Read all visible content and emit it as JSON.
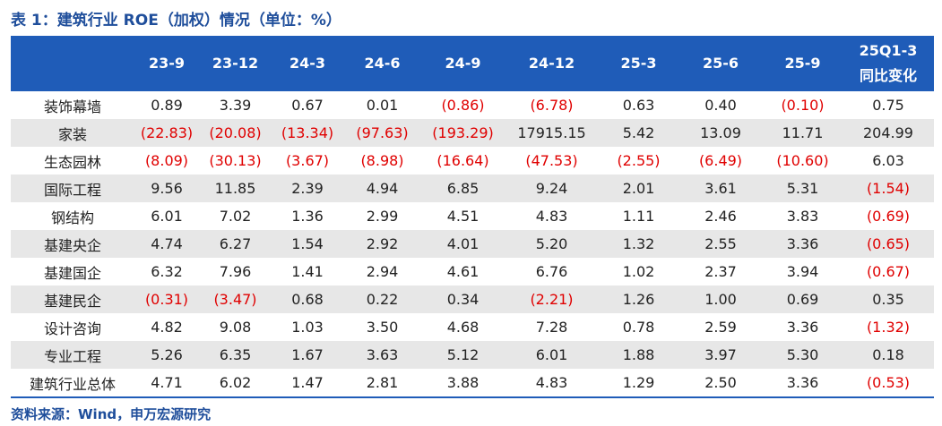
{
  "title": "表 1：建筑行业 ROE（加权）情况（单位：%）",
  "table": {
    "columns": [
      "23-9",
      "23-12",
      "24-3",
      "24-6",
      "24-9",
      "24-12",
      "25-3",
      "25-6",
      "25-9",
      "25Q1-3\n同比变化"
    ],
    "rows": [
      [
        "装饰幕墙",
        "0.89",
        "3.39",
        "0.67",
        "0.01",
        "(0.86)",
        "(6.78)",
        "0.63",
        "0.40",
        "(0.10)",
        "0.75"
      ],
      [
        "家装",
        "(22.83)",
        "(20.08)",
        "(13.34)",
        "(97.63)",
        "(193.29)",
        "17915.15",
        "5.42",
        "13.09",
        "11.71",
        "204.99"
      ],
      [
        "生态园林",
        "(8.09)",
        "(30.13)",
        "(3.67)",
        "(8.98)",
        "(16.64)",
        "(47.53)",
        "(2.55)",
        "(6.49)",
        "(10.60)",
        "6.03"
      ],
      [
        "国际工程",
        "9.56",
        "11.85",
        "2.39",
        "4.94",
        "6.85",
        "9.24",
        "2.01",
        "3.61",
        "5.31",
        "(1.54)"
      ],
      [
        "钢结构",
        "6.01",
        "7.02",
        "1.36",
        "2.99",
        "4.51",
        "4.83",
        "1.11",
        "2.46",
        "3.83",
        "(0.69)"
      ],
      [
        "基建央企",
        "4.74",
        "6.27",
        "1.54",
        "2.92",
        "4.01",
        "5.20",
        "1.32",
        "2.55",
        "3.36",
        "(0.65)"
      ],
      [
        "基建国企",
        "6.32",
        "7.96",
        "1.41",
        "2.94",
        "4.61",
        "6.76",
        "1.02",
        "2.37",
        "3.94",
        "(0.67)"
      ],
      [
        "基建民企",
        "(0.31)",
        "(3.47)",
        "0.68",
        "0.22",
        "0.34",
        "(2.21)",
        "1.26",
        "1.00",
        "0.69",
        "0.35"
      ],
      [
        "设计咨询",
        "4.82",
        "9.08",
        "1.03",
        "3.50",
        "4.68",
        "7.28",
        "0.78",
        "2.59",
        "3.36",
        "(1.32)"
      ],
      [
        "专业工程",
        "5.26",
        "6.35",
        "1.67",
        "3.63",
        "5.12",
        "6.01",
        "1.88",
        "3.97",
        "5.30",
        "0.18"
      ],
      [
        "建筑行业总体",
        "4.71",
        "6.02",
        "1.47",
        "2.81",
        "3.88",
        "4.83",
        "1.29",
        "2.50",
        "3.36",
        "(0.53)"
      ]
    ]
  },
  "source": "资料来源：Wind，申万宏源研究"
}
